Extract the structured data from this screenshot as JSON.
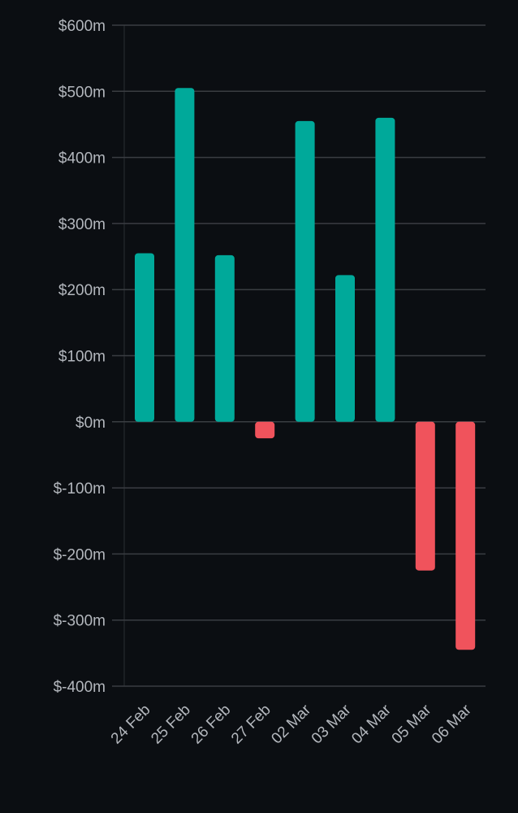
{
  "chart_data": {
    "type": "bar",
    "categories": [
      "24 Feb",
      "25 Feb",
      "26 Feb",
      "27 Feb",
      "02 Mar",
      "03 Mar",
      "04 Mar",
      "05 Mar",
      "06 Mar"
    ],
    "values": [
      255,
      505,
      252,
      -25,
      455,
      222,
      460,
      -225,
      -345
    ],
    "ylim": [
      -400,
      600
    ],
    "yticks": [
      600,
      500,
      400,
      300,
      200,
      100,
      0,
      -100,
      -200,
      -300,
      -400
    ],
    "ytick_labels": [
      "$600m",
      "$500m",
      "$400m",
      "$300m",
      "$200m",
      "$100m",
      "$0m",
      "$-100m",
      "$-200m",
      "$-300m",
      "$-400m"
    ],
    "grid": true,
    "colors": {
      "positive": "#00a99a",
      "negative": "#f0535c",
      "background": "#0b0e12",
      "grid": "#3a3d42",
      "text": "#b3b7bd"
    }
  }
}
